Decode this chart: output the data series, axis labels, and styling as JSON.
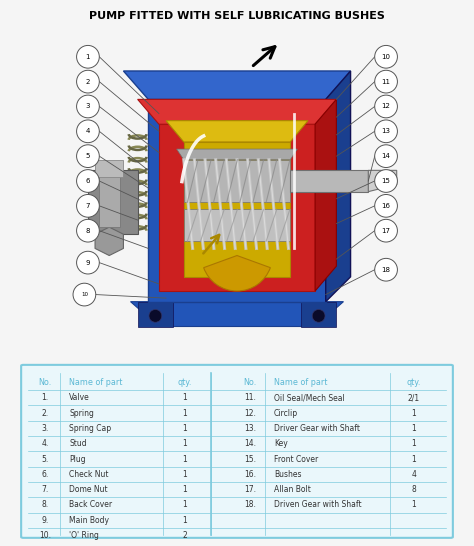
{
  "title": "PUMP FITTED WITH SELF LUBRICATING BUSHES",
  "title_fontsize": 8.0,
  "title_fontweight": "bold",
  "bg_color": "#f5f5f5",
  "table_border_color": "#7ecbde",
  "table_header_color": "#5bb8d4",
  "table_bg_color": "#eaf7fb",
  "left_parts": [
    [
      "No.",
      "Name of part",
      "qty."
    ],
    [
      "1.",
      "Valve",
      "1"
    ],
    [
      "2.",
      "Spring",
      "1"
    ],
    [
      "3.",
      "Spring Cap",
      "1"
    ],
    [
      "4.",
      "Stud",
      "1"
    ],
    [
      "5.",
      "Plug",
      "1"
    ],
    [
      "6.",
      "Check Nut",
      "1"
    ],
    [
      "7.",
      "Dome Nut",
      "1"
    ],
    [
      "8.",
      "Back Cover",
      "1"
    ],
    [
      "9.",
      "Main Body",
      "1"
    ],
    [
      "10.",
      "'O' Ring",
      "2"
    ]
  ],
  "right_parts": [
    [
      "No.",
      "Name of part",
      "qty."
    ],
    [
      "11.",
      "Oil Seal/Mech Seal",
      "2/1"
    ],
    [
      "12.",
      "Circlip",
      "1"
    ],
    [
      "13.",
      "Driver Gear with Shaft",
      "1"
    ],
    [
      "14.",
      "Key",
      "1"
    ],
    [
      "15.",
      "Front Cover",
      "1"
    ],
    [
      "16.",
      "Bushes",
      "4"
    ],
    [
      "17.",
      "Allan Bolt",
      "8"
    ],
    [
      "18.",
      "Driven Gear with Shaft",
      "1"
    ],
    [
      "",
      "",
      ""
    ],
    [
      "",
      "",
      ""
    ]
  ],
  "blue_dark": "#1a3f8f",
  "blue_mid": "#2255b8",
  "blue_light": "#3366cc",
  "red_dark": "#aa1111",
  "red_mid": "#cc2020",
  "red_light": "#dd3333",
  "yellow_gear": "#ccaa00",
  "yellow_light": "#ddbb11",
  "gray_shaft": "#a8a8a8",
  "gray_dark": "#707070",
  "gray_light": "#cccccc"
}
